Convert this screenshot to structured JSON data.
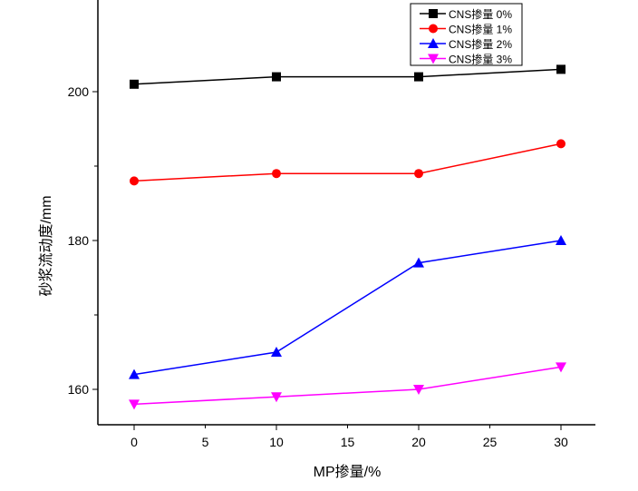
{
  "chart_data": {
    "type": "line",
    "title": "",
    "xlabel": "MP掺量/%",
    "ylabel": "砂浆流动度/mm",
    "x": [
      0,
      10,
      20,
      30
    ],
    "xlim": [
      -3,
      32
    ],
    "ylim": [
      155,
      205
    ],
    "xticks": [
      0,
      5,
      10,
      15,
      20,
      25,
      30
    ],
    "yticks": [
      160,
      180,
      200
    ],
    "grid": false,
    "legend_position": "top-right",
    "series": [
      {
        "name": "CNS掺量 0%",
        "values": [
          201,
          202,
          202,
          203
        ],
        "color": "#000000",
        "marker": "square"
      },
      {
        "name": "CNS掺量 1%",
        "values": [
          188,
          189,
          189,
          193
        ],
        "color": "#ff0000",
        "marker": "circle"
      },
      {
        "name": "CNS掺量 2%",
        "values": [
          162,
          165,
          177,
          180
        ],
        "color": "#0000ff",
        "marker": "triangle-up"
      },
      {
        "name": "CNS掺量 3%",
        "values": [
          158,
          159,
          160,
          163
        ],
        "color": "#ff00ff",
        "marker": "triangle-down"
      }
    ]
  }
}
